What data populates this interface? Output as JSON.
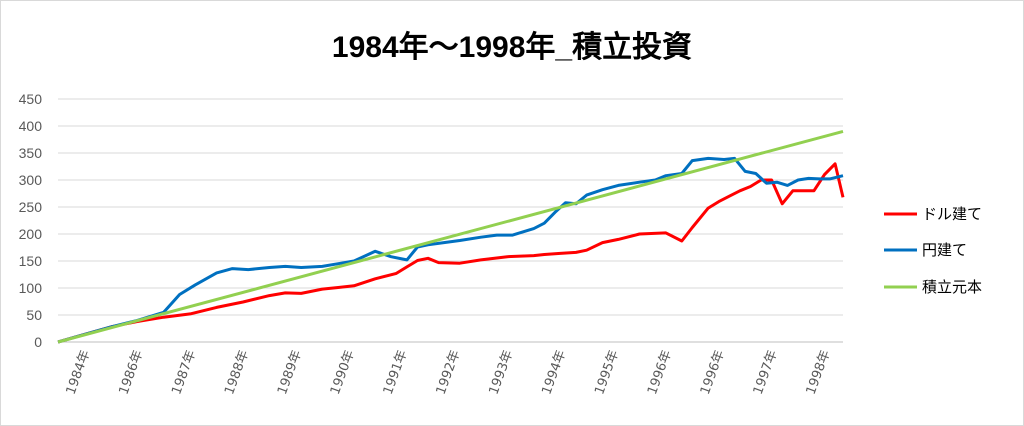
{
  "chart_data": {
    "type": "line",
    "title": "1984年～1998年_積立投資",
    "xlabel": "",
    "ylabel": "",
    "xlim": [
      1984.0,
      1998.85
    ],
    "ylim": [
      0,
      450
    ],
    "yticks": [
      0,
      50,
      100,
      150,
      200,
      250,
      300,
      350,
      400,
      450
    ],
    "x_tick_labels": [
      {
        "label": "1984年",
        "x": 1984.6
      },
      {
        "label": "1986年",
        "x": 1985.6
      },
      {
        "label": "1987年",
        "x": 1986.6
      },
      {
        "label": "1988年",
        "x": 1987.6
      },
      {
        "label": "1989年",
        "x": 1988.6
      },
      {
        "label": "1990年",
        "x": 1989.6
      },
      {
        "label": "1991年",
        "x": 1990.6
      },
      {
        "label": "1992年",
        "x": 1991.6
      },
      {
        "label": "1993年",
        "x": 1992.6
      },
      {
        "label": "1994年",
        "x": 1993.6
      },
      {
        "label": "1995年",
        "x": 1994.6
      },
      {
        "label": "1996年",
        "x": 1995.6
      },
      {
        "label": "1996年",
        "x": 1996.6
      },
      {
        "label": "1997年",
        "x": 1997.6
      },
      {
        "label": "1998年",
        "x": 1998.6
      }
    ],
    "grid": true,
    "legend_position": "right",
    "series": [
      {
        "name": "ドル建て",
        "color": "#ff0000",
        "x": [
          1984.0,
          1984.5,
          1985.0,
          1985.5,
          1986.0,
          1986.5,
          1987.0,
          1987.5,
          1988.0,
          1988.3,
          1988.6,
          1989.0,
          1989.3,
          1989.6,
          1990.0,
          1990.4,
          1990.6,
          1990.8,
          1991.0,
          1991.2,
          1991.6,
          1992.0,
          1992.5,
          1993.0,
          1993.2,
          1993.5,
          1993.8,
          1994.0,
          1994.3,
          1994.6,
          1995.0,
          1995.5,
          1995.8,
          1996.0,
          1996.3,
          1996.5,
          1996.7,
          1996.9,
          1997.1,
          1997.3,
          1997.5,
          1997.7,
          1997.9,
          1998.1,
          1998.3,
          1998.5,
          1998.7,
          1998.85
        ],
        "values": [
          0,
          14,
          28,
          38,
          46,
          52,
          64,
          74,
          86,
          91,
          90,
          98,
          101,
          104,
          117,
          127,
          139,
          151,
          155,
          147,
          146,
          152,
          158,
          160,
          162,
          164,
          166,
          170,
          184,
          190,
          200,
          202,
          187,
          212,
          248,
          260,
          270,
          280,
          288,
          300,
          300,
          256,
          280,
          280,
          280,
          310,
          330,
          268
        ]
      },
      {
        "name": "円建て",
        "color": "#0070c0",
        "x": [
          1984.0,
          1984.5,
          1985.0,
          1985.5,
          1986.0,
          1986.3,
          1986.6,
          1987.0,
          1987.3,
          1987.6,
          1988.0,
          1988.3,
          1988.6,
          1989.0,
          1989.3,
          1989.6,
          1990.0,
          1990.3,
          1990.6,
          1990.8,
          1991.0,
          1991.3,
          1991.6,
          1992.0,
          1992.3,
          1992.6,
          1993.0,
          1993.2,
          1993.4,
          1993.6,
          1993.8,
          1994.0,
          1994.3,
          1994.6,
          1995.0,
          1995.3,
          1995.5,
          1995.8,
          1996.0,
          1996.3,
          1996.6,
          1996.8,
          1997.0,
          1997.2,
          1997.4,
          1997.6,
          1997.8,
          1998.0,
          1998.2,
          1998.4,
          1998.6,
          1998.85
        ],
        "values": [
          0,
          14,
          28,
          40,
          55,
          88,
          106,
          128,
          136,
          134,
          138,
          140,
          138,
          140,
          145,
          150,
          168,
          158,
          152,
          176,
          180,
          184,
          188,
          194,
          198,
          198,
          210,
          220,
          240,
          258,
          256,
          272,
          282,
          290,
          296,
          300,
          308,
          312,
          336,
          340,
          338,
          340,
          316,
          312,
          294,
          296,
          290,
          300,
          303,
          302,
          302,
          308
        ]
      },
      {
        "name": "積立元本",
        "color": "#92d050",
        "x": [
          1984.0,
          1998.85
        ],
        "values": [
          0,
          390
        ]
      }
    ]
  }
}
